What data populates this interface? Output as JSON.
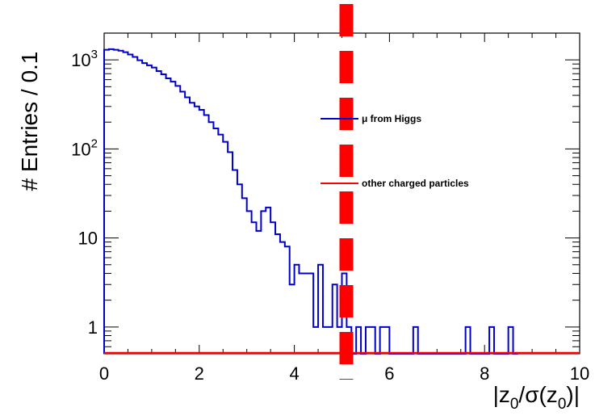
{
  "chart_data": {
    "type": "histogram",
    "xlabel": "|z_0/σ(z_0)|",
    "ylabel": "# Entries / 0.1",
    "xlim": [
      0,
      10
    ],
    "ylim": [
      0.5,
      2000
    ],
    "yscale": "log",
    "bin_width": 0.1,
    "x_ticks": [
      0,
      2,
      4,
      6,
      8,
      10
    ],
    "y_ticks": [
      {
        "value": 1,
        "label": "1"
      },
      {
        "value": 10,
        "label": "10"
      },
      {
        "value": 100,
        "base": "10",
        "exp": "2"
      },
      {
        "value": 1000,
        "base": "10",
        "exp": "3"
      }
    ],
    "legend_position": "center-right",
    "cut_line": {
      "x": 5.0,
      "color": "#ff0000",
      "style": "dashed"
    },
    "series": [
      {
        "name": "μ from Higgs",
        "color": "#0000cc",
        "bin_low_edges": [
          0.0,
          0.1,
          0.2,
          0.3,
          0.4,
          0.5,
          0.6,
          0.7,
          0.8,
          0.9,
          1.0,
          1.1,
          1.2,
          1.3,
          1.4,
          1.5,
          1.6,
          1.7,
          1.8,
          1.9,
          2.0,
          2.1,
          2.2,
          2.3,
          2.4,
          2.5,
          2.6,
          2.7,
          2.8,
          2.9,
          3.0,
          3.1,
          3.2,
          3.3,
          3.4,
          3.5,
          3.6,
          3.7,
          3.8,
          3.9,
          4.0,
          4.1,
          4.2,
          4.3,
          4.4,
          4.5,
          4.6,
          4.7,
          4.8,
          4.9,
          5.0,
          5.1,
          5.2,
          5.3,
          5.4,
          5.5,
          5.6,
          5.7,
          5.8,
          5.9,
          6.0,
          6.5,
          6.6,
          7.6,
          7.7,
          8.1,
          8.2,
          8.5,
          8.6
        ],
        "counts": [
          1300,
          1320,
          1300,
          1270,
          1220,
          1150,
          1080,
          990,
          920,
          870,
          820,
          750,
          690,
          620,
          570,
          510,
          440,
          380,
          330,
          300,
          275,
          240,
          200,
          170,
          145,
          120,
          92,
          58,
          40,
          28,
          20,
          15,
          12,
          20,
          22,
          15,
          11,
          9,
          8,
          3,
          5,
          4,
          4,
          4,
          1,
          5,
          1,
          1,
          3,
          1,
          4,
          1,
          0,
          1,
          0,
          1,
          1,
          0,
          1,
          1,
          0,
          1,
          0,
          1,
          0,
          1,
          0,
          1,
          0
        ]
      },
      {
        "name": "other charged particles",
        "color": "#ff0000",
        "bin_low_edges": [],
        "counts": []
      }
    ]
  }
}
